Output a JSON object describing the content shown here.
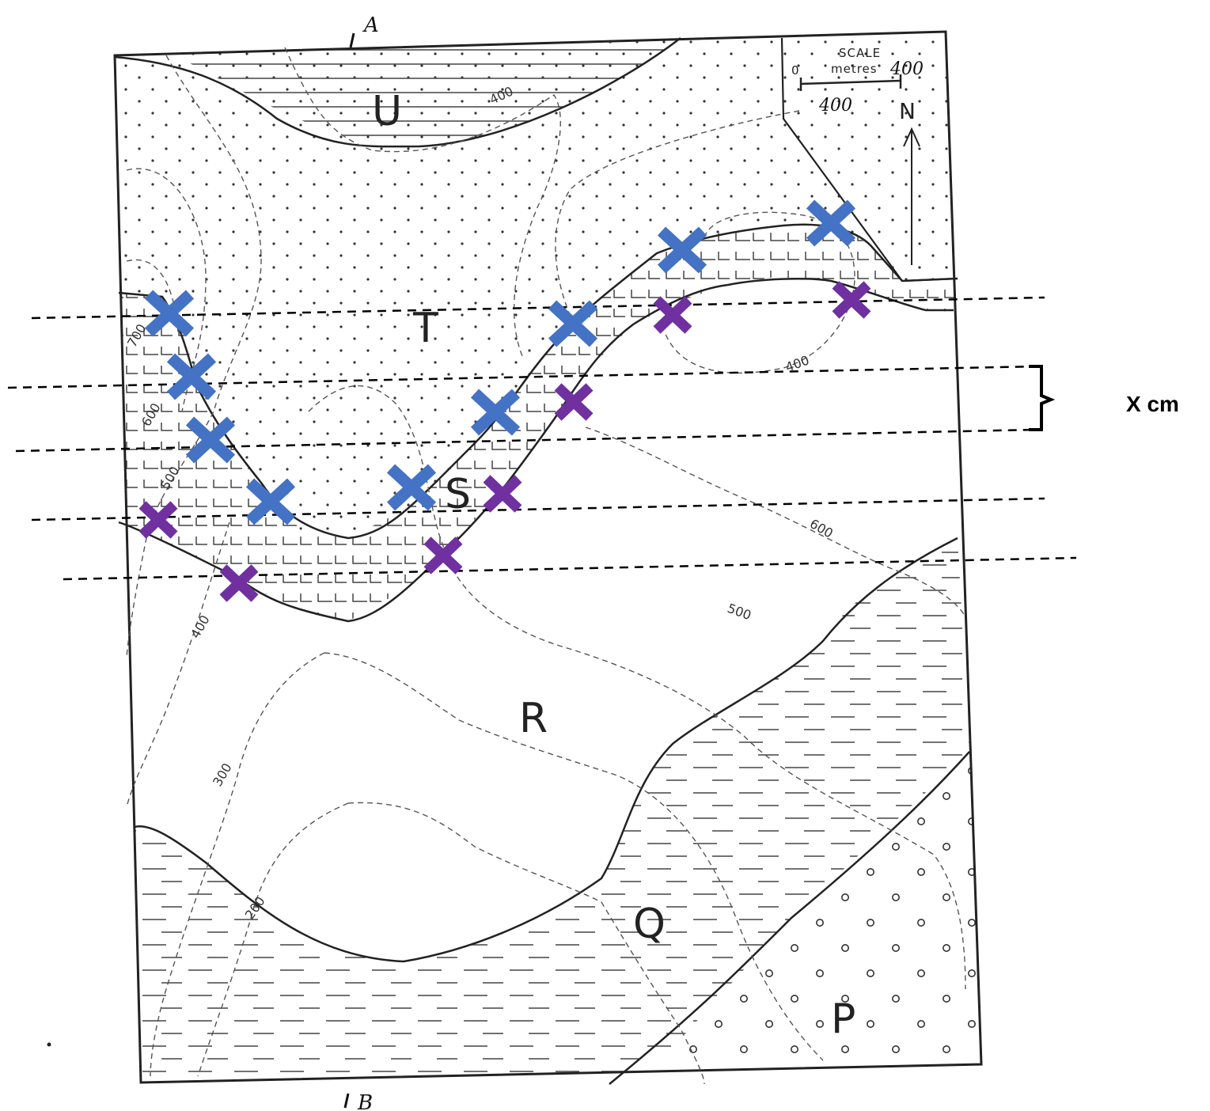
{
  "units": {
    "U": "U",
    "T": "T",
    "S": "S",
    "R": "R",
    "Q": "Q",
    "P": "P"
  },
  "section_line": {
    "start": "A",
    "end": "B"
  },
  "scale": {
    "title": "SCALE",
    "unit": "metres",
    "zero": "0",
    "max": "400",
    "handwritten_max": "400",
    "handwritten_bar": "400"
  },
  "north": "N",
  "contours": [
    "700",
    "600",
    "500",
    "400",
    "400",
    "400",
    "600",
    "500",
    "300",
    "200"
  ],
  "annotation": {
    "label": "X cm"
  },
  "marker_colors": {
    "top_contact": "#4472c4",
    "base_contact": "#7030a0"
  },
  "colors": {
    "ink": "#222222",
    "background": "#ffffff"
  }
}
